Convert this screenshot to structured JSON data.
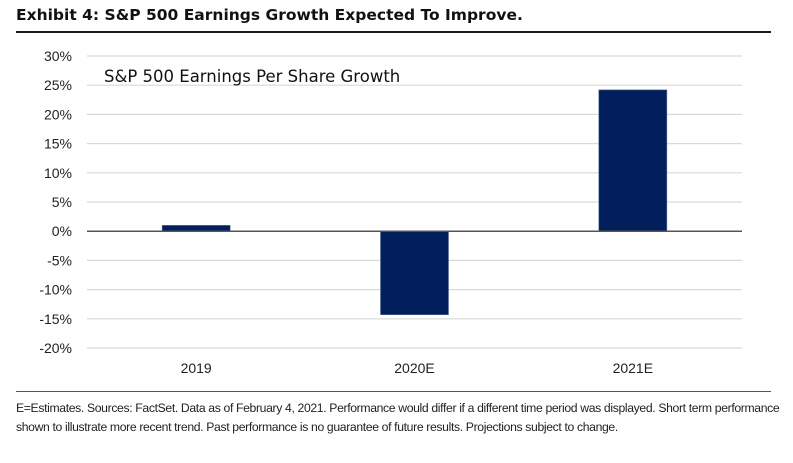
{
  "exhibit_title": "Exhibit 4: S&P 500 Earnings Growth Expected To Improve.",
  "footnote": "E=Estimates. Sources: FactSet. Data as of February 4, 2021. Performance would differ if a different time period was displayed. Short term performance shown to illustrate more recent trend. Past performance is no guarantee of future results. Projections subject to change.",
  "chart_data": {
    "type": "bar",
    "title": "S&P 500 Earnings Per Share Growth",
    "xlabel": "",
    "ylabel": "",
    "categories": [
      "2019",
      "2020E",
      "2021E"
    ],
    "values": [
      1.0,
      -14.3,
      24.2
    ],
    "value_unit": "%",
    "ylim": [
      -20,
      30
    ],
    "yticks": [
      30,
      25,
      20,
      15,
      10,
      5,
      0,
      -5,
      -10,
      -15,
      -20
    ],
    "ytick_labels": [
      "30%",
      "25%",
      "20%",
      "15%",
      "10%",
      "5%",
      "0%",
      "-5%",
      "-10%",
      "-15%",
      "-20%"
    ],
    "grid": true,
    "legend": "none",
    "bar_color": "#001f5b"
  }
}
